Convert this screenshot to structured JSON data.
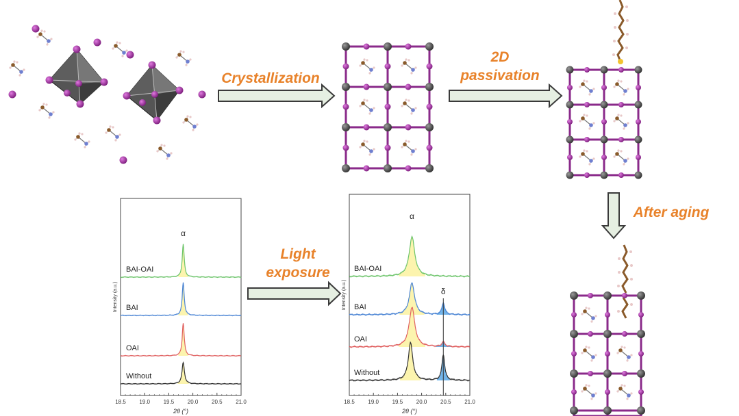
{
  "labels": {
    "crystallization": "Crystallization",
    "passivation_line1": "2D",
    "passivation_line2": "passivation",
    "aging": "After aging",
    "light_line1": "Light",
    "light_line2": "exposure"
  },
  "colors": {
    "label_orange": "#e8822a",
    "arrow_fill": "#e6efe2",
    "arrow_stroke": "#3a3a3a",
    "iodide_purple": "#9b2a9b",
    "octahedron_gray": "#4a4a4a",
    "peak_yellow": "#fbf2a0",
    "peak_blue": "#5aa8e6"
  },
  "chart_data": [
    {
      "type": "line",
      "title": "",
      "xlabel": "2θ (°)",
      "ylabel": "Intensity (a.u.)",
      "xlim": [
        18.5,
        21.0
      ],
      "x_ticks": [
        "18.5",
        "19.0",
        "19.5",
        "20.0",
        "20.5",
        "21.0"
      ],
      "annotations": [
        "α"
      ],
      "series": [
        {
          "name": "BAI-OAI",
          "color": "#6cc46a",
          "peaks": [
            {
              "center": 19.8,
              "height": 1.0,
              "width": 0.025,
              "fill": "#fbf2a0"
            }
          ]
        },
        {
          "name": "BAI",
          "color": "#4a84d4",
          "peaks": [
            {
              "center": 19.8,
              "height": 1.0,
              "width": 0.025,
              "fill": "#fbf2a0"
            }
          ]
        },
        {
          "name": "OAI",
          "color": "#e06060",
          "peaks": [
            {
              "center": 19.8,
              "height": 1.0,
              "width": 0.025,
              "fill": "#fbf2a0"
            }
          ]
        },
        {
          "name": "Without",
          "color": "#333333",
          "peaks": [
            {
              "center": 19.8,
              "height": 0.65,
              "width": 0.03,
              "fill": "#fbf2a0"
            }
          ]
        }
      ]
    },
    {
      "type": "line",
      "title": "",
      "xlabel": "2θ (°)",
      "ylabel": "Intensity (a.u.)",
      "xlim": [
        18.5,
        21.0
      ],
      "x_ticks": [
        "18.5",
        "19.0",
        "19.5",
        "20.0",
        "20.5",
        "21.0"
      ],
      "annotations": [
        "α",
        "δ"
      ],
      "delta_line_x": 20.45,
      "series": [
        {
          "name": "BAI-OAI",
          "color": "#6cc46a",
          "peaks": [
            {
              "center": 19.8,
              "height": 1.0,
              "width": 0.07,
              "fill": "#fbf2a0"
            }
          ]
        },
        {
          "name": "BAI",
          "color": "#4a84d4",
          "peaks": [
            {
              "center": 19.8,
              "height": 0.8,
              "width": 0.065,
              "fill": "#fbf2a0"
            },
            {
              "center": 20.45,
              "height": 0.3,
              "width": 0.035,
              "fill": "#5aa8e6"
            }
          ]
        },
        {
          "name": "OAI",
          "color": "#e06060",
          "peaks": [
            {
              "center": 19.8,
              "height": 1.0,
              "width": 0.07,
              "fill": "#fbf2a0"
            },
            {
              "center": 20.45,
              "height": 0.12,
              "width": 0.04,
              "fill": "#5aa8e6"
            }
          ]
        },
        {
          "name": "Without",
          "color": "#333333",
          "peaks": [
            {
              "center": 19.77,
              "height": 0.95,
              "width": 0.055,
              "fill": "#fbf2a0"
            },
            {
              "center": 20.45,
              "height": 0.65,
              "width": 0.035,
              "fill": "#5aa8e6"
            }
          ]
        }
      ]
    }
  ]
}
